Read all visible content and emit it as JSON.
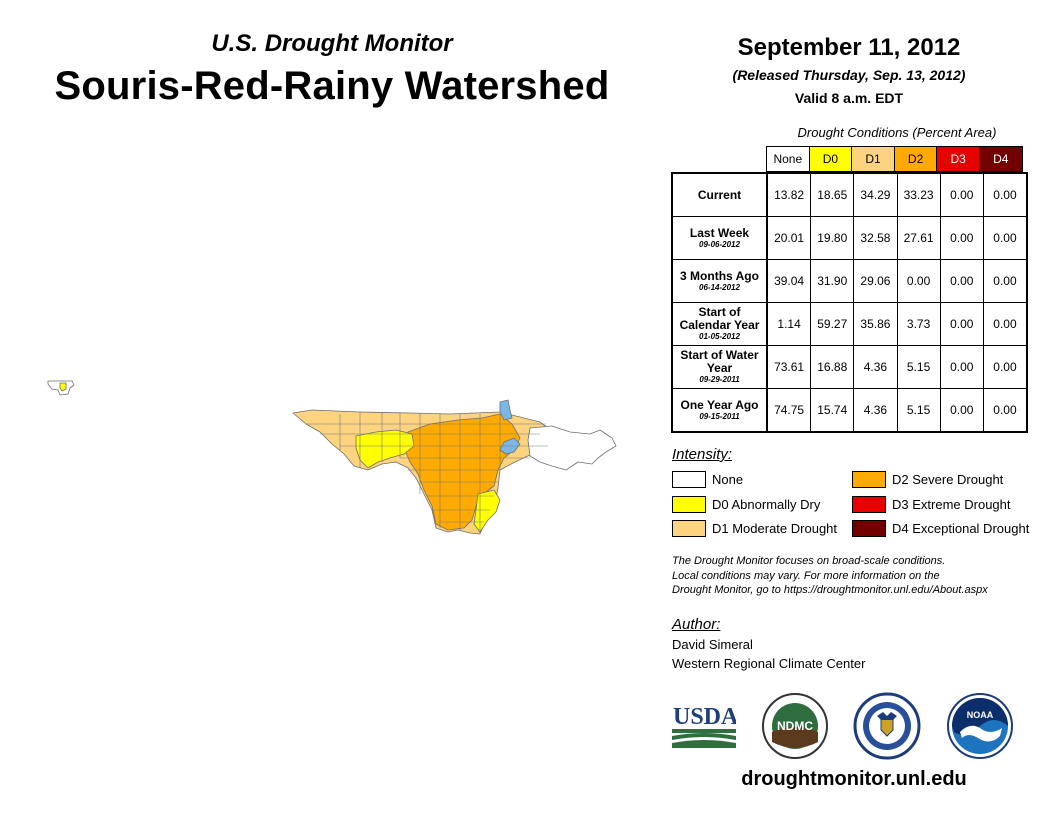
{
  "header": {
    "subtitle": "U.S. Drought Monitor",
    "title": "Souris-Red-Rainy Watershed",
    "date": "September 11, 2012",
    "released": "(Released Thursday, Sep. 13, 2012)",
    "valid": "Valid 8 a.m. EDT"
  },
  "table": {
    "caption": "Drought Conditions (Percent Area)",
    "columns": [
      {
        "label": "None",
        "color": "#ffffff",
        "text_color": "#000000"
      },
      {
        "label": "D0",
        "color": "#ffff00",
        "text_color": "#000000"
      },
      {
        "label": "D1",
        "color": "#fcd37f",
        "text_color": "#000000"
      },
      {
        "label": "D2",
        "color": "#ffaa00",
        "text_color": "#000000"
      },
      {
        "label": "D3",
        "color": "#e60000",
        "text_color": "#ffffff"
      },
      {
        "label": "D4",
        "color": "#730000",
        "text_color": "#ffffff"
      }
    ],
    "rows": [
      {
        "label": "Current",
        "sublabel": "",
        "values": [
          "13.82",
          "18.65",
          "34.29",
          "33.23",
          "0.00",
          "0.00"
        ]
      },
      {
        "label": "Last Week",
        "sublabel": "09-06-2012",
        "values": [
          "20.01",
          "19.80",
          "32.58",
          "27.61",
          "0.00",
          "0.00"
        ]
      },
      {
        "label": "3 Months Ago",
        "sublabel": "06-14-2012",
        "values": [
          "39.04",
          "31.90",
          "29.06",
          "0.00",
          "0.00",
          "0.00"
        ]
      },
      {
        "label": "Start of Calendar Year",
        "sublabel": "01-05-2012",
        "values": [
          "1.14",
          "59.27",
          "35.86",
          "3.73",
          "0.00",
          "0.00"
        ]
      },
      {
        "label": "Start of Water Year",
        "sublabel": "09-29-2011",
        "values": [
          "73.61",
          "16.88",
          "4.36",
          "5.15",
          "0.00",
          "0.00"
        ]
      },
      {
        "label": "One Year Ago",
        "sublabel": "09-15-2011",
        "values": [
          "74.75",
          "15.74",
          "4.36",
          "5.15",
          "0.00",
          "0.00"
        ]
      }
    ]
  },
  "legend": {
    "title": "Intensity:",
    "items": [
      {
        "label": "None",
        "color": "#ffffff"
      },
      {
        "label": "D0 Abnormally Dry",
        "color": "#ffff00"
      },
      {
        "label": "D1 Moderate Drought",
        "color": "#fcd37f"
      },
      {
        "label": "D2 Severe Drought",
        "color": "#ffaa00"
      },
      {
        "label": "D3 Extreme Drought",
        "color": "#e60000"
      },
      {
        "label": "D4 Exceptional Drought",
        "color": "#730000"
      }
    ]
  },
  "note": {
    "line1": "The Drought Monitor focuses on broad-scale conditions.",
    "line2": "Local conditions may vary. For more information on the",
    "line3": "Drought Monitor, go to https://droughtmonitor.unl.edu/About.aspx"
  },
  "author": {
    "title": "Author:",
    "name": "David Simeral",
    "org": "Western Regional Climate Center"
  },
  "logos": {
    "usda_text": "USDA",
    "ndmc_text": "NDMC",
    "noaa_text": "NOAA"
  },
  "website": "droughtmonitor.unl.edu"
}
